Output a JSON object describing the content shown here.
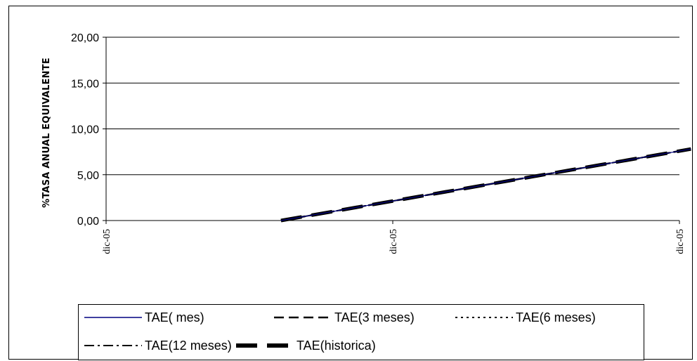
{
  "chart_data": {
    "type": "line",
    "title": "",
    "xlabel": "",
    "ylabel": "%TASA ANUAL EQUIVALENTE",
    "x_tick_labels": [
      "dic-05",
      "dic-05",
      "dic-05"
    ],
    "y_tick_labels": [
      "0,00",
      "5,00",
      "10,00",
      "15,00",
      "20,00"
    ],
    "ylim": [
      0,
      20
    ],
    "grid": true,
    "legend_position": "bottom",
    "series": [
      {
        "name": "TAE( mes)",
        "style": "solid-thin",
        "color": "#000080",
        "points": [
          [
            0.305,
            0
          ],
          [
            1.02,
            7.8
          ]
        ]
      },
      {
        "name": "TAE(3 meses)",
        "style": "dashed",
        "color": "#000000",
        "points": [
          [
            0.305,
            0
          ],
          [
            1.02,
            7.8
          ]
        ]
      },
      {
        "name": "TAE(6 meses)",
        "style": "dotted",
        "color": "#000000",
        "points": [
          [
            0.305,
            0
          ],
          [
            1.02,
            7.8
          ]
        ]
      },
      {
        "name": "TAE(12 meses)",
        "style": "dash-dot",
        "color": "#000000",
        "points": [
          [
            0.305,
            0
          ],
          [
            1.02,
            7.8
          ]
        ]
      },
      {
        "name": "TAE(historica)",
        "style": "thick-dashed",
        "color": "#000000",
        "points": [
          [
            0.305,
            0
          ],
          [
            1.02,
            7.8
          ]
        ]
      }
    ]
  }
}
